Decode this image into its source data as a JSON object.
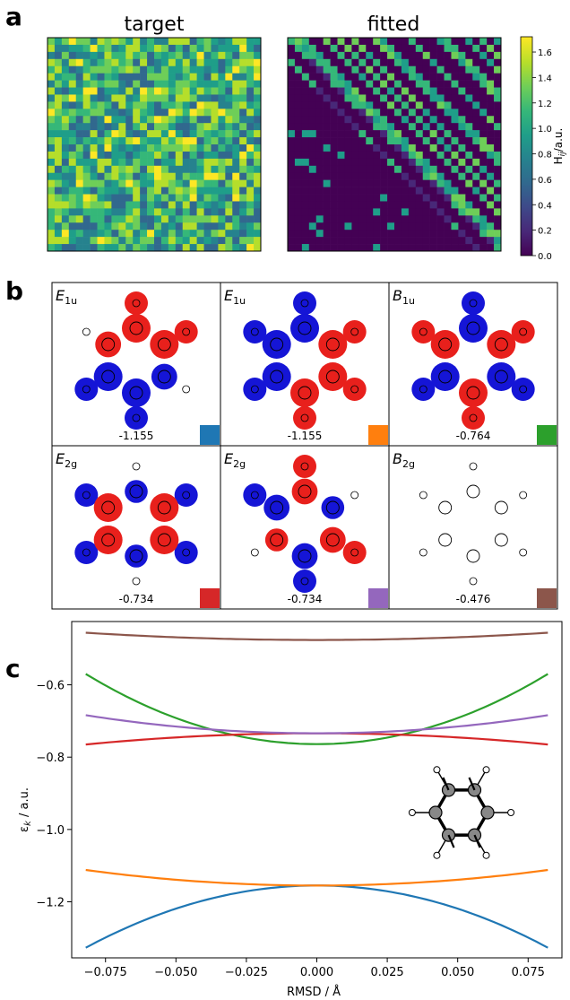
{
  "panel_a": {
    "label": "a",
    "target_title": "target",
    "fitted_title": "fitted",
    "colorbar_label": "H_ij/a.u.",
    "colorbar_ticks": [
      "0.0",
      "0.2",
      "0.4",
      "0.6",
      "0.8",
      "1.0",
      "1.2",
      "1.4",
      "1.6"
    ],
    "colormap": [
      "#440154",
      "#482878",
      "#3e4989",
      "#31688e",
      "#26828e",
      "#1f9e89",
      "#35b779",
      "#6ece58",
      "#b5de2b",
      "#fde725"
    ],
    "vmin": 0.0,
    "vmax": 1.72
  },
  "panel_b": {
    "label": "b",
    "orbitals": [
      {
        "sym": "E",
        "sub": "1u",
        "energy": "-1.155",
        "color": "#1f77b4"
      },
      {
        "sym": "E",
        "sub": "1u",
        "energy": "-1.155",
        "color": "#ff7f0e"
      },
      {
        "sym": "B",
        "sub": "1u",
        "energy": "-0.764",
        "color": "#2ca02c"
      },
      {
        "sym": "E",
        "sub": "2g",
        "energy": "-0.734",
        "color": "#d62728"
      },
      {
        "sym": "E",
        "sub": "2g",
        "energy": "-0.734",
        "color": "#9467bd"
      },
      {
        "sym": "B",
        "sub": "2g",
        "energy": "-0.476",
        "color": "#8c564b"
      }
    ],
    "lobe_colors": {
      "positive": "#e8201c",
      "negative": "#1515d6"
    }
  },
  "panel_c": {
    "label": "c"
  },
  "chart_data": {
    "type": "line",
    "xlabel": "RMSD / Å",
    "ylabel": "ε_k / a.u.",
    "xlim": [
      -0.087,
      0.087
    ],
    "ylim": [
      -1.355,
      -0.425
    ],
    "xticks": [
      -0.075,
      -0.05,
      -0.025,
      0.0,
      0.025,
      0.05,
      0.075
    ],
    "xtick_labels": [
      "−0.075",
      "−0.050",
      "−0.025",
      "0.000",
      "0.025",
      "0.050",
      "0.075"
    ],
    "yticks": [
      -1.2,
      -1.0,
      -0.8,
      -0.6
    ],
    "ytick_labels": [
      "−1.2",
      "−1.0",
      "−0.8",
      "−0.6"
    ],
    "x_range": [
      -0.082,
      0.082
    ],
    "series": [
      {
        "color": "#1f77b4",
        "x": [
          -0.082,
          -0.06,
          -0.04,
          -0.02,
          0.0,
          0.02,
          0.04,
          0.06,
          0.082
        ],
        "values": [
          -1.327,
          -1.281,
          -1.233,
          -1.189,
          -1.155,
          -1.189,
          -1.233,
          -1.281,
          -1.327
        ]
      },
      {
        "color": "#ff7f0e",
        "x": [
          -0.082,
          -0.06,
          -0.04,
          -0.02,
          0.0,
          0.02,
          0.04,
          0.06,
          0.082
        ],
        "values": [
          -1.112,
          -1.114,
          -1.121,
          -1.136,
          -1.155,
          -1.136,
          -1.121,
          -1.114,
          -1.112
        ]
      },
      {
        "color": "#2ca02c",
        "x": [
          -0.082,
          -0.06,
          -0.04,
          -0.02,
          0.0,
          0.02,
          0.04,
          0.06,
          0.082
        ],
        "values": [
          -0.57,
          -0.642,
          -0.703,
          -0.747,
          -0.764,
          -0.747,
          -0.703,
          -0.642,
          -0.57
        ]
      },
      {
        "color": "#d62728",
        "x": [
          -0.082,
          -0.06,
          -0.04,
          -0.02,
          0.0,
          0.02,
          0.04,
          0.06,
          0.082
        ],
        "values": [
          -0.765,
          -0.762,
          -0.755,
          -0.745,
          -0.734,
          -0.745,
          -0.755,
          -0.762,
          -0.765
        ]
      },
      {
        "color": "#9467bd",
        "x": [
          -0.082,
          -0.06,
          -0.04,
          -0.02,
          0.0,
          0.02,
          0.04,
          0.06,
          0.082
        ],
        "values": [
          -0.684,
          -0.692,
          -0.705,
          -0.72,
          -0.734,
          -0.72,
          -0.705,
          -0.692,
          -0.684
        ]
      },
      {
        "color": "#8c564b",
        "x": [
          -0.082,
          -0.06,
          -0.04,
          -0.02,
          0.0,
          0.02,
          0.04,
          0.06,
          0.082
        ],
        "values": [
          -0.456,
          -0.464,
          -0.47,
          -0.474,
          -0.476,
          -0.474,
          -0.47,
          -0.464,
          -0.456
        ]
      }
    ],
    "grid": false
  }
}
